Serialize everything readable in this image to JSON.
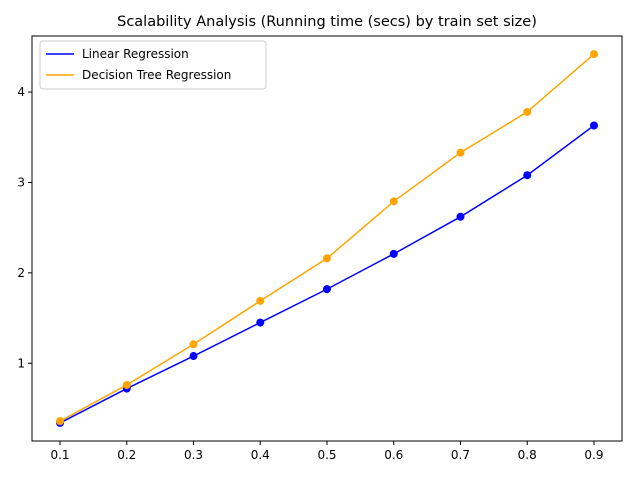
{
  "chart_data": {
    "type": "line",
    "title": "Scalability Analysis (Running time (secs) by train set size)",
    "xlabel": "",
    "ylabel": "",
    "x": [
      0.1,
      0.2,
      0.3,
      0.4,
      0.5,
      0.6,
      0.7,
      0.8,
      0.9
    ],
    "x_ticks": [
      "0.1",
      "0.2",
      "0.3",
      "0.4",
      "0.5",
      "0.6",
      "0.7",
      "0.8",
      "0.9"
    ],
    "y_ticks": [
      "1",
      "2",
      "3",
      "4"
    ],
    "xlim": [
      0.058,
      0.942
    ],
    "ylim": [
      0.14,
      4.62
    ],
    "grid": false,
    "legend_position": "top-left",
    "series": [
      {
        "name": "Linear Regression",
        "color": "#0000ff",
        "marker": "circle",
        "values": [
          0.34,
          0.72,
          1.08,
          1.45,
          1.82,
          2.21,
          2.62,
          3.08,
          3.63
        ]
      },
      {
        "name": "Decision Tree Regression",
        "color": "#ffa500",
        "marker": "circle",
        "values": [
          0.36,
          0.76,
          1.21,
          1.69,
          2.16,
          2.79,
          3.33,
          3.78,
          4.42
        ]
      }
    ]
  }
}
